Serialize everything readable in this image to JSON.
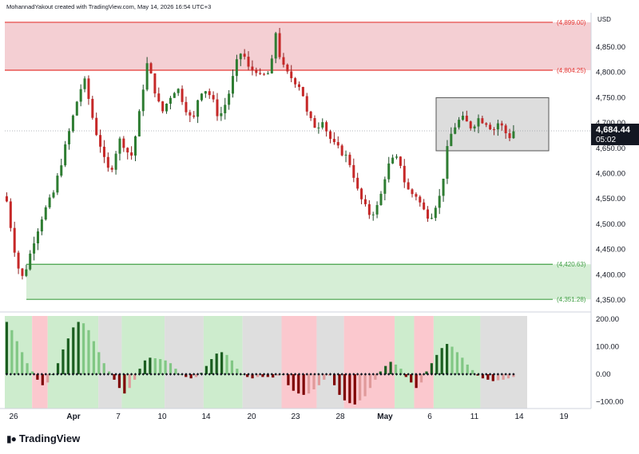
{
  "header": {
    "credit": "MohannadYakout created with TradingView.com, May 14, 2026 16:54 UTC+3"
  },
  "brand": {
    "name": "TradingView",
    "logo_icon": "tradingview-logo-icon"
  },
  "price_axis": {
    "currency": "USD",
    "ticks": [
      "4,850.00",
      "4,800.00",
      "4,750.00",
      "4,700.00",
      "4,650.00",
      "4,600.00",
      "4,550.00",
      "4,500.00",
      "4,450.00",
      "4,400.00",
      "4,350.00"
    ]
  },
  "osc_axis": {
    "ticks": [
      "200.00",
      "100.00",
      "0.00",
      "−100.00"
    ]
  },
  "last_price": {
    "value": "4,684.44",
    "countdown": "05:02"
  },
  "levels": [
    {
      "label": "(4,899.00)",
      "color": "#e53935"
    },
    {
      "label": "(4,804.25)",
      "color": "#e53935"
    },
    {
      "label": "(4,420.63)",
      "color": "#43a047"
    },
    {
      "label": "(4,351.28)",
      "color": "#43a047"
    }
  ],
  "time_axis": {
    "labels": [
      "26",
      "Apr",
      "7",
      "10",
      "14",
      "20",
      "23",
      "28",
      "May",
      "6",
      "11",
      "14",
      "19"
    ]
  },
  "colors": {
    "up": "#089981",
    "down": "#c62828",
    "up_body": "#1b5e20",
    "resistance_fill": "#f4cfd3",
    "support_fill": "#d6eed6",
    "range_fill": "#d9d9d9"
  },
  "chart_data": [
    {
      "type": "candlestick",
      "symbol_unit": "USD",
      "y_ticks": [
        4350,
        4400,
        4450,
        4500,
        4550,
        4600,
        4650,
        4700,
        4750,
        4800,
        4850
      ],
      "ylim": [
        4325,
        4905
      ],
      "x_tick_labels": [
        "26",
        "Apr",
        "7",
        "10",
        "14",
        "20",
        "23",
        "28",
        "May",
        "6",
        "11",
        "14",
        "19"
      ],
      "horizontal_levels": [
        4899.0,
        4804.25,
        4420.63,
        4351.28
      ],
      "zones": [
        {
          "kind": "resistance",
          "from": 4804.25,
          "to": 4899.0
        },
        {
          "kind": "support",
          "from": 4351.28,
          "to": 4420.63
        },
        {
          "kind": "range-box",
          "from": 4645,
          "to": 4750
        }
      ],
      "last_price": 4684.44,
      "close_path": [
        4545,
        4480,
        4420,
        4395,
        4420,
        4460,
        4490,
        4520,
        4540,
        4560,
        4600,
        4640,
        4680,
        4720,
        4760,
        4785,
        4740,
        4690,
        4660,
        4620,
        4600,
        4640,
        4670,
        4650,
        4630,
        4680,
        4740,
        4820,
        4790,
        4750,
        4720,
        4740,
        4760,
        4770,
        4745,
        4720,
        4700,
        4750,
        4770,
        4760,
        4740,
        4710,
        4730,
        4760,
        4800,
        4840,
        4830,
        4800,
        4810,
        4790,
        4795,
        4800,
        4880,
        4820,
        4800,
        4790,
        4780,
        4770,
        4720,
        4700,
        4690,
        4710,
        4680,
        4660,
        4650,
        4640,
        4630,
        4600,
        4560,
        4540,
        4520,
        4525,
        4540,
        4590,
        4620,
        4630,
        4625,
        4580,
        4560,
        4560,
        4540,
        4520,
        4515,
        4540,
        4560,
        4640,
        4680,
        4700,
        4710,
        4700,
        4690,
        4710,
        4705,
        4700,
        4685,
        4700,
        4690,
        4670,
        4684
      ]
    },
    {
      "type": "bar",
      "name": "oscillator",
      "y_ticks": [
        200,
        100,
        0,
        -100
      ],
      "ylim": [
        -125,
        212
      ],
      "values": [
        190,
        160,
        120,
        80,
        40,
        10,
        -20,
        -40,
        -30,
        0,
        40,
        90,
        130,
        170,
        190,
        185,
        160,
        120,
        80,
        40,
        10,
        -20,
        -50,
        -70,
        -50,
        -20,
        20,
        50,
        60,
        58,
        55,
        50,
        40,
        20,
        0,
        -10,
        -15,
        -10,
        5,
        30,
        55,
        75,
        80,
        70,
        50,
        20,
        0,
        -10,
        -15,
        -10,
        -10,
        -10,
        -12,
        -5,
        0,
        -40,
        -60,
        -70,
        -75,
        -70,
        -55,
        -40,
        -20,
        -5,
        -40,
        -75,
        -95,
        -105,
        -110,
        -95,
        -80,
        -50,
        -20,
        10,
        30,
        45,
        35,
        20,
        -10,
        -30,
        -50,
        -30,
        10,
        40,
        70,
        95,
        110,
        100,
        80,
        60,
        35,
        15,
        -5,
        -15,
        -20,
        -25,
        -22,
        -20,
        -15,
        -10
      ],
      "background_bands": [
        {
          "state": "bull",
          "from": 0,
          "to": 7
        },
        {
          "state": "bear",
          "from": 7,
          "to": 11
        },
        {
          "state": "bull",
          "from": 11,
          "to": 24
        },
        {
          "state": "neutral",
          "from": 24,
          "to": 30
        },
        {
          "state": "bull",
          "from": 30,
          "to": 41
        },
        {
          "state": "neutral",
          "from": 41,
          "to": 51
        },
        {
          "state": "bull",
          "from": 51,
          "to": 61
        },
        {
          "state": "neutral",
          "from": 61,
          "to": 71
        },
        {
          "state": "bear",
          "from": 71,
          "to": 80
        },
        {
          "state": "neutral",
          "from": 80,
          "to": 87
        },
        {
          "state": "bear",
          "from": 87,
          "to": 100
        },
        {
          "state": "bull",
          "from": 100,
          "to": 105
        },
        {
          "state": "bear",
          "from": 105,
          "to": 110
        },
        {
          "state": "bull",
          "from": 110,
          "to": 122
        },
        {
          "state": "neutral",
          "from": 122,
          "to": 134
        }
      ]
    }
  ]
}
